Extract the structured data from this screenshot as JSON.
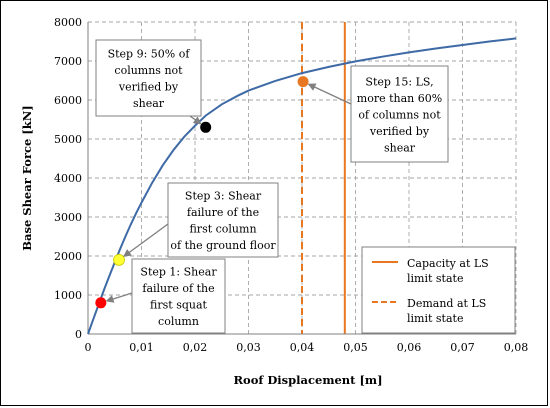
{
  "chart_data": {
    "type": "line",
    "title": "",
    "xlabel": "Roof Displacement [m]",
    "ylabel": "Base Shear Force [kN]",
    "xlim": [
      0,
      0.08
    ],
    "ylim": [
      0,
      8000
    ],
    "x_ticks": [
      "0",
      "0,01",
      "0,02",
      "0,03",
      "0,04",
      "0,05",
      "0,06",
      "0,07",
      "0,08"
    ],
    "y_ticks": [
      "0",
      "1000",
      "2000",
      "3000",
      "4000",
      "5000",
      "6000",
      "7000",
      "8000"
    ],
    "grid": true,
    "series": [
      {
        "name": "",
        "color": "#3e6aa6",
        "x": [
          0,
          0.001,
          0.002,
          0.003,
          0.004,
          0.005,
          0.006,
          0.007,
          0.008,
          0.009,
          0.01,
          0.012,
          0.014,
          0.016,
          0.018,
          0.02,
          0.022,
          0.025,
          0.028,
          0.03,
          0.035,
          0.04,
          0.045,
          0.05,
          0.055,
          0.06,
          0.065,
          0.07,
          0.075,
          0.08
        ],
        "y": [
          0,
          380,
          760,
          1130,
          1490,
          1840,
          2180,
          2500,
          2810,
          3100,
          3370,
          3880,
          4330,
          4720,
          5060,
          5340,
          5600,
          5890,
          6110,
          6240,
          6490,
          6690,
          6850,
          6990,
          7110,
          7220,
          7320,
          7410,
          7500,
          7580
        ]
      }
    ],
    "reference_lines": [
      {
        "name": "Capacity at LS limit state",
        "x": 0.048,
        "style": "solid",
        "color": "#e87722"
      },
      {
        "name": "Demand at LS limit state",
        "x": 0.04,
        "style": "dashed",
        "color": "#e87722"
      }
    ],
    "points": [
      {
        "label": "Step 1: Shear failure of  the first  squat column",
        "x": 0.0024,
        "y": 800,
        "color": "#ff0000"
      },
      {
        "label": "Step 3: Shear failure of the first column of the ground floor",
        "x": 0.0058,
        "y": 1900,
        "color": "#ffff33"
      },
      {
        "label": "Step 9: 50% of columns not verified by shear",
        "x": 0.022,
        "y": 5300,
        "color": "#000000"
      },
      {
        "label": "Step 15: LS, more than 60% of columns not verified by shear",
        "x": 0.0402,
        "y": 6470,
        "color": "#e87722"
      }
    ],
    "callouts": [
      {
        "lines": [
          "Step 1: Shear",
          "failure of  the",
          "first  squat",
          "column"
        ]
      },
      {
        "lines": [
          "Step 3: Shear",
          "failure of the",
          "first column",
          "of the ground floor"
        ]
      },
      {
        "lines": [
          "Step 9: 50% of",
          "columns not",
          "verified by",
          "shear"
        ]
      },
      {
        "lines": [
          "Step 15: LS,",
          "more than 60%",
          "of columns not",
          "verified by",
          "shear"
        ]
      }
    ],
    "legend": {
      "placement": "bottom-right",
      "entries": [
        "Capacity at LS limit state",
        "Demand at LS limit state"
      ],
      "entry_lines": [
        [
          "Capacity at LS",
          "limit state"
        ],
        [
          "Demand at LS",
          "limit state"
        ]
      ]
    }
  }
}
